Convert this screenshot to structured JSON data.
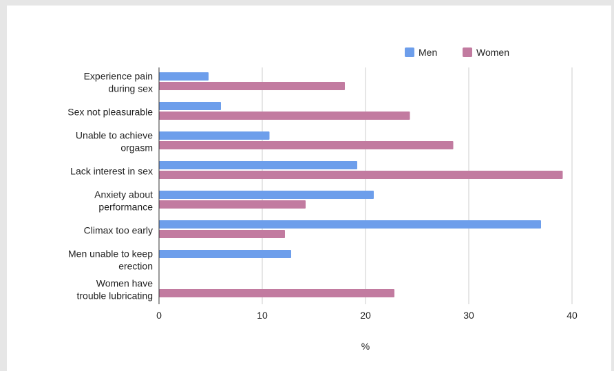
{
  "chart_data": {
    "type": "bar",
    "orientation": "horizontal",
    "categories": [
      [
        "Experience pain",
        "during sex"
      ],
      [
        "Sex not pleasurable"
      ],
      [
        "Unable to achieve",
        "orgasm"
      ],
      [
        "Lack interest in sex"
      ],
      [
        "Anxiety about",
        "performance"
      ],
      [
        "Climax too early"
      ],
      [
        "Men unable to keep",
        "erection"
      ],
      [
        "Women have",
        "trouble lubricating"
      ]
    ],
    "series": [
      {
        "name": "Men",
        "color": "#6d9eeb",
        "values": [
          4.8,
          6.0,
          10.7,
          19.2,
          20.8,
          37.0,
          12.8,
          0
        ]
      },
      {
        "name": "Women",
        "color": "#c27ba0",
        "values": [
          18.0,
          24.3,
          28.5,
          39.1,
          14.2,
          12.2,
          0,
          22.8
        ]
      }
    ],
    "xlabel": "%",
    "ylabel": "",
    "xlim": [
      0,
      40
    ],
    "xticks": [
      0,
      10,
      20,
      30,
      40
    ],
    "grid": true,
    "legend": "top-right"
  }
}
